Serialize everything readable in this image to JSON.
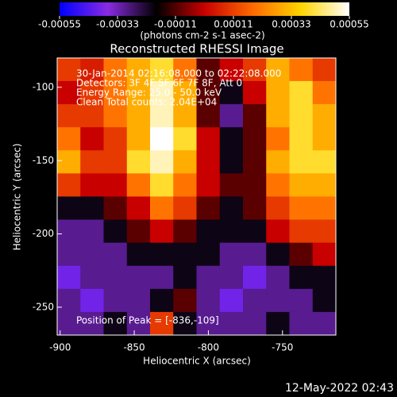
{
  "chart_data": {
    "type": "heatmap",
    "title": "Reconstructed RHESSI Image",
    "xlabel": "Heliocentric X (arcsec)",
    "ylabel": "Heliocentric Y (arcsec)",
    "xlim": [
      -902,
      -714
    ],
    "ylim": [
      -269,
      -80
    ],
    "xticks": [
      -900,
      -850,
      -800,
      -750
    ],
    "yticks": [
      -100,
      -150,
      -200,
      -250
    ],
    "colorbar_label": "(photons cm-2 s-1 asec-2)",
    "zlim": [
      -0.00055,
      0.00055
    ],
    "cticks": [
      -0.00055,
      -0.00033,
      -0.00011,
      0.00011,
      0.00033,
      0.00055
    ],
    "colormap": [
      "#0000ff",
      "#8a2be2",
      "#000000",
      "#c80000",
      "#ff6a00",
      "#ffd400",
      "#ffffff"
    ],
    "values": [
      [
        0.0001,
        5e-05,
        0.0002,
        0.0003,
        0.0004,
        0.0002,
        -0.0001,
        0,
        0.0001,
        0.0003,
        0.0002,
        0.0001
      ],
      [
        0,
        0.0001,
        0.0002,
        0.0003,
        0.0005,
        0.0003,
        -0.0001,
        -0.0002,
        0,
        0.0003,
        0.0004,
        0.0002
      ],
      [
        0.0001,
        0.0001,
        0.0002,
        0.0003,
        0.0005,
        0.0003,
        -0.0001,
        -0.0003,
        -0.0001,
        0.0003,
        0.0004,
        0.0003
      ],
      [
        0.0002,
        0,
        0.0001,
        0.0003,
        0.00055,
        0.0004,
        0,
        -0.0002,
        -0.0001,
        0.0002,
        0.0004,
        0.0003
      ],
      [
        0.0003,
        0.0001,
        0.0001,
        0.0004,
        0.0005,
        0.0003,
        0,
        -0.0002,
        -0.0001,
        0.0003,
        0.0004,
        0.0004
      ],
      [
        0.0001,
        0,
        0,
        0.0002,
        0.0004,
        0.0002,
        0,
        -0.0001,
        -0.0001,
        0.0002,
        0.0003,
        0.0003
      ],
      [
        -0.0002,
        -0.0002,
        -0.0001,
        0,
        0.0002,
        0.0001,
        -0.0001,
        -0.0002,
        -0.0001,
        0.0001,
        0.0002,
        0.0002
      ],
      [
        -0.0003,
        -0.0003,
        -0.0002,
        -0.0001,
        0,
        -0.0001,
        -0.0002,
        -0.0002,
        -0.0002,
        0,
        0.0001,
        0.0001
      ],
      [
        -0.0003,
        -0.0003,
        -0.0003,
        -0.0002,
        -0.0002,
        -0.0002,
        -0.0002,
        -0.0003,
        -0.0003,
        -0.0002,
        -0.0001,
        0
      ],
      [
        -0.0004,
        -0.0003,
        -0.0003,
        -0.0003,
        -0.0003,
        -0.0002,
        -0.0003,
        -0.0003,
        -0.0004,
        -0.0003,
        -0.0002,
        -0.0002
      ],
      [
        -0.0003,
        -0.0004,
        -0.0003,
        -0.0003,
        -0.0002,
        -0.0001,
        -0.0003,
        -0.0004,
        -0.0003,
        -0.0003,
        -0.0003,
        -0.0002
      ],
      [
        -0.0003,
        -0.0003,
        -0.0002,
        -0.0003,
        0.0001,
        -0.0002,
        -0.0003,
        -0.0003,
        -0.0003,
        -0.0002,
        -0.0003,
        -0.0003
      ]
    ],
    "annotations": [
      "30-Jan-2014 02:16:08.000 to 02:22:08.000",
      "Detectors: 3F 4F 5F 6F 7F 8F, Att 0",
      "Energy Range: 25.0 - 50.0 keV",
      "Clean     Total counts: 2.04E+04",
      "Position of Peak = [-836,-109]"
    ],
    "timestamp": "12-May-2022 02:43"
  }
}
